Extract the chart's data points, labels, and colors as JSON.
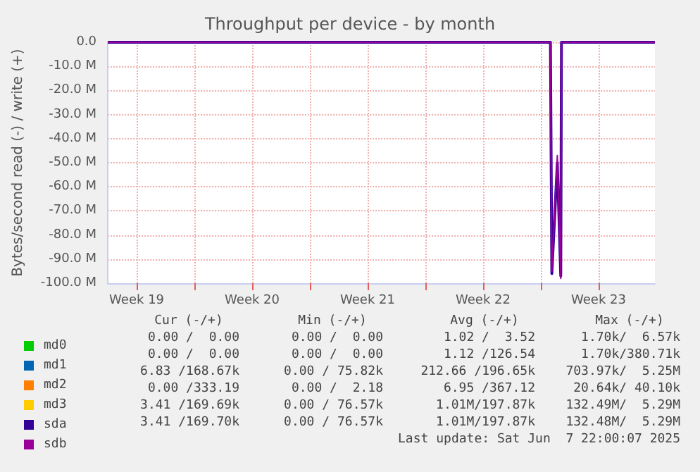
{
  "chart_data": {
    "type": "line",
    "title": "Throughput per device - by month",
    "ylabel": "Bytes/second read (-) / write (+)",
    "xlim": [
      "2025-05-05T18:00",
      "2025-06-07T22:00"
    ],
    "xticks": [
      {
        "value": "2025-05-07T12:00",
        "label": "Week 19"
      },
      {
        "value": "2025-05-11T00:00",
        "label": null
      },
      {
        "value": "2025-05-14T12:00",
        "label": "Week 20"
      },
      {
        "value": "2025-05-18T00:00",
        "label": null
      },
      {
        "value": "2025-05-21T12:00",
        "label": "Week 21"
      },
      {
        "value": "2025-05-25T00:00",
        "label": null
      },
      {
        "value": "2025-05-28T12:00",
        "label": "Week 22"
      },
      {
        "value": "2025-06-01T00:00",
        "label": null
      },
      {
        "value": "2025-06-04T12:00",
        "label": "Week 23"
      }
    ],
    "ylim": [
      -100,
      0
    ],
    "yticks": [
      {
        "value": -100,
        "label": "-100.0 M"
      },
      {
        "value": -90,
        "label": "-90.0 M"
      },
      {
        "value": -80,
        "label": "-80.0 M"
      },
      {
        "value": -70,
        "label": "-70.0 M"
      },
      {
        "value": -60,
        "label": "-60.0 M"
      },
      {
        "value": -50,
        "label": "-50.0 M"
      },
      {
        "value": -40,
        "label": "-40.0 M"
      },
      {
        "value": -30,
        "label": "-30.0 M"
      },
      {
        "value": -20,
        "label": "-20.0 M"
      },
      {
        "value": -10,
        "label": "-10.0 M"
      },
      {
        "value": 0,
        "label": "0.0"
      }
    ],
    "series": [
      {
        "name": "md0",
        "color": "#00cc00"
      },
      {
        "name": "md1",
        "color": "#0066b3"
      },
      {
        "name": "md2",
        "color": "#ff8000"
      },
      {
        "name": "md3",
        "color": "#ffcc00"
      },
      {
        "name": "sda",
        "color": "#330099",
        "x": [
          "2025-05-05T18:00",
          "2025-06-01T14:00",
          "2025-06-01T16:00",
          "2025-06-02T00:00",
          "2025-06-02T05:00",
          "2025-06-02T06:00",
          "2025-06-07T22:00"
        ],
        "values": [
          0,
          0,
          -96,
          -50,
          -97,
          0,
          0
        ]
      },
      {
        "name": "sdb",
        "color": "#990099",
        "x": [
          "2025-05-05T18:00",
          "2025-06-01T14:00",
          "2025-06-01T16:00",
          "2025-06-02T00:00",
          "2025-06-02T05:00",
          "2025-06-02T06:00",
          "2025-06-07T22:00"
        ],
        "values": [
          0,
          0,
          -95,
          -47,
          -98,
          0,
          0
        ]
      }
    ],
    "annotations": [
      "Cur (-/+)",
      "Min (-/+)",
      "Avg (-/+)",
      "Max (-/+)",
      "0.00 /  0.00",
      "0.00 /  0.00",
      "1.02 /  3.52",
      "1.70k/  6.57k",
      "0.00 /  0.00",
      "0.00 /  0.00",
      "1.12 /126.54",
      "1.70k/380.71k",
      "6.83 /168.67k",
      "0.00 / 75.82k",
      "212.66 /196.65k",
      "703.97k/  5.25M",
      "0.00 /333.19",
      "0.00 /  2.18",
      "6.95 /367.12",
      "20.64k/ 40.10k",
      "3.41 /169.69k",
      "0.00 / 76.57k",
      "1.01M/197.87k",
      "132.49M/  5.29M",
      "3.41 /169.70k",
      "0.00 / 76.57k",
      "1.01M/197.87k",
      "132.48M/  5.29M",
      "Last update: Sat Jun  7 22:00:07 2025"
    ],
    "grid": true,
    "legend": "bottom left"
  }
}
